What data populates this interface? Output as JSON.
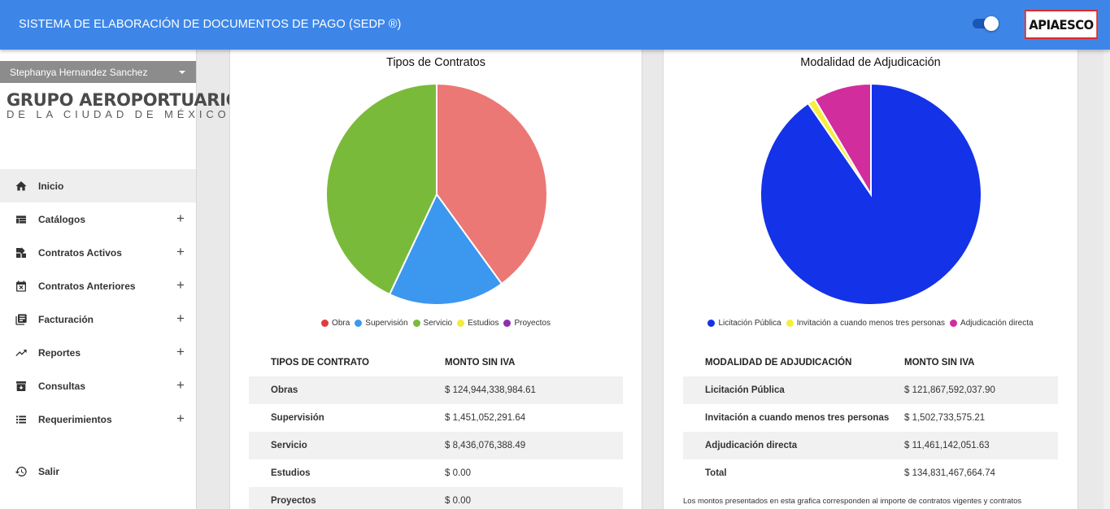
{
  "app": {
    "title": "SISTEMA DE ELABORACIÓN DE DOCUMENTOS DE PAGO (SEDP ®)",
    "brand_logo": "APIAESCO",
    "theme_toggle_on": true
  },
  "sidebar": {
    "user": "Stephanya Hernandez Sanchez",
    "org_logo": {
      "line1": "GRUPO AEROPORTUARIO",
      "line2": "DE LA CIUDAD DE MÉXICO"
    },
    "items": [
      {
        "label": "Inicio",
        "icon": "home-icon",
        "expandable": false,
        "active": true
      },
      {
        "label": "Catálogos",
        "icon": "table-icon",
        "expandable": true
      },
      {
        "label": "Contratos Activos",
        "icon": "dashboard-icon",
        "expandable": true
      },
      {
        "label": "Contratos Anteriores",
        "icon": "calendar-x-icon",
        "expandable": true
      },
      {
        "label": "Facturación",
        "icon": "library-books-icon",
        "expandable": true
      },
      {
        "label": "Reportes",
        "icon": "trending-up-icon",
        "expandable": true
      },
      {
        "label": "Consultas",
        "icon": "archive-icon",
        "expandable": true
      },
      {
        "label": "Requerimientos",
        "icon": "list-icon",
        "expandable": true
      }
    ],
    "logout": {
      "label": "Salir",
      "icon": "history-icon"
    }
  },
  "contract_types": {
    "title": "Tipos de Contratos",
    "legend": [
      {
        "label": "Obra",
        "color": "#e03c3c"
      },
      {
        "label": "Supervisión",
        "color": "#3c97ef"
      },
      {
        "label": "Servicio",
        "color": "#7aba3a"
      },
      {
        "label": "Estudios",
        "color": "#f5ea3b"
      },
      {
        "label": "Proyectos",
        "color": "#8e2fae"
      }
    ],
    "headers": [
      "TIPOS DE CONTRATO",
      "MONTO SIN IVA"
    ],
    "rows": [
      {
        "name": "Obras",
        "amount": "$ 124,944,338,984.61"
      },
      {
        "name": "Supervisión",
        "amount": "$ 1,451,052,291.64"
      },
      {
        "name": "Servicio",
        "amount": "$ 8,436,076,388.49"
      },
      {
        "name": "Estudios",
        "amount": "$ 0.00"
      },
      {
        "name": "Proyectos",
        "amount": "$ 0.00"
      }
    ]
  },
  "award_modality": {
    "title": "Modalidad de Adjudicación",
    "legend": [
      {
        "label": "Licitación Pública",
        "color": "#1432e8"
      },
      {
        "label": "Invitación a cuando menos tres personas",
        "color": "#f5ef3b"
      },
      {
        "label": "Adjudicación directa",
        "color": "#d22d9c"
      }
    ],
    "headers": [
      "MODALIDAD DE ADJUDICACIÓN",
      "MONTO SIN IVA"
    ],
    "rows": [
      {
        "name": "Licitación Pública",
        "amount": "$ 121,867,592,037.90"
      },
      {
        "name": "Invitación a cuando menos tres personas",
        "amount": "$ 1,502,733,575.21"
      },
      {
        "name": "Adjudicación directa",
        "amount": "$ 11,461,142,051.63"
      },
      {
        "name": "Total",
        "amount": "$ 134,831,467,664.74"
      }
    ],
    "footnote": "Los montos presentados en esta grafica corresponden al importe de contratos vigentes y contratos"
  },
  "chart_data": [
    {
      "type": "pie",
      "title": "Tipos de Contratos",
      "categories": [
        "Obra",
        "Supervisión",
        "Servicio",
        "Estudios",
        "Proyectos"
      ],
      "values": [
        40,
        17,
        43,
        0,
        0
      ],
      "colors": [
        "#eb7875",
        "#3c97ef",
        "#7aba3a",
        "#f5ea3b",
        "#8e2fae"
      ],
      "legend_position": "bottom"
    },
    {
      "type": "pie",
      "title": "Modalidad de Adjudicación",
      "categories": [
        "Licitación Pública",
        "Invitación a cuando menos tres personas",
        "Adjudicación directa"
      ],
      "values": [
        121867592037.9,
        1502733575.21,
        11461142051.63
      ],
      "colors": [
        "#1432e8",
        "#f5ef3b",
        "#d22d9c"
      ],
      "legend_position": "bottom"
    }
  ]
}
